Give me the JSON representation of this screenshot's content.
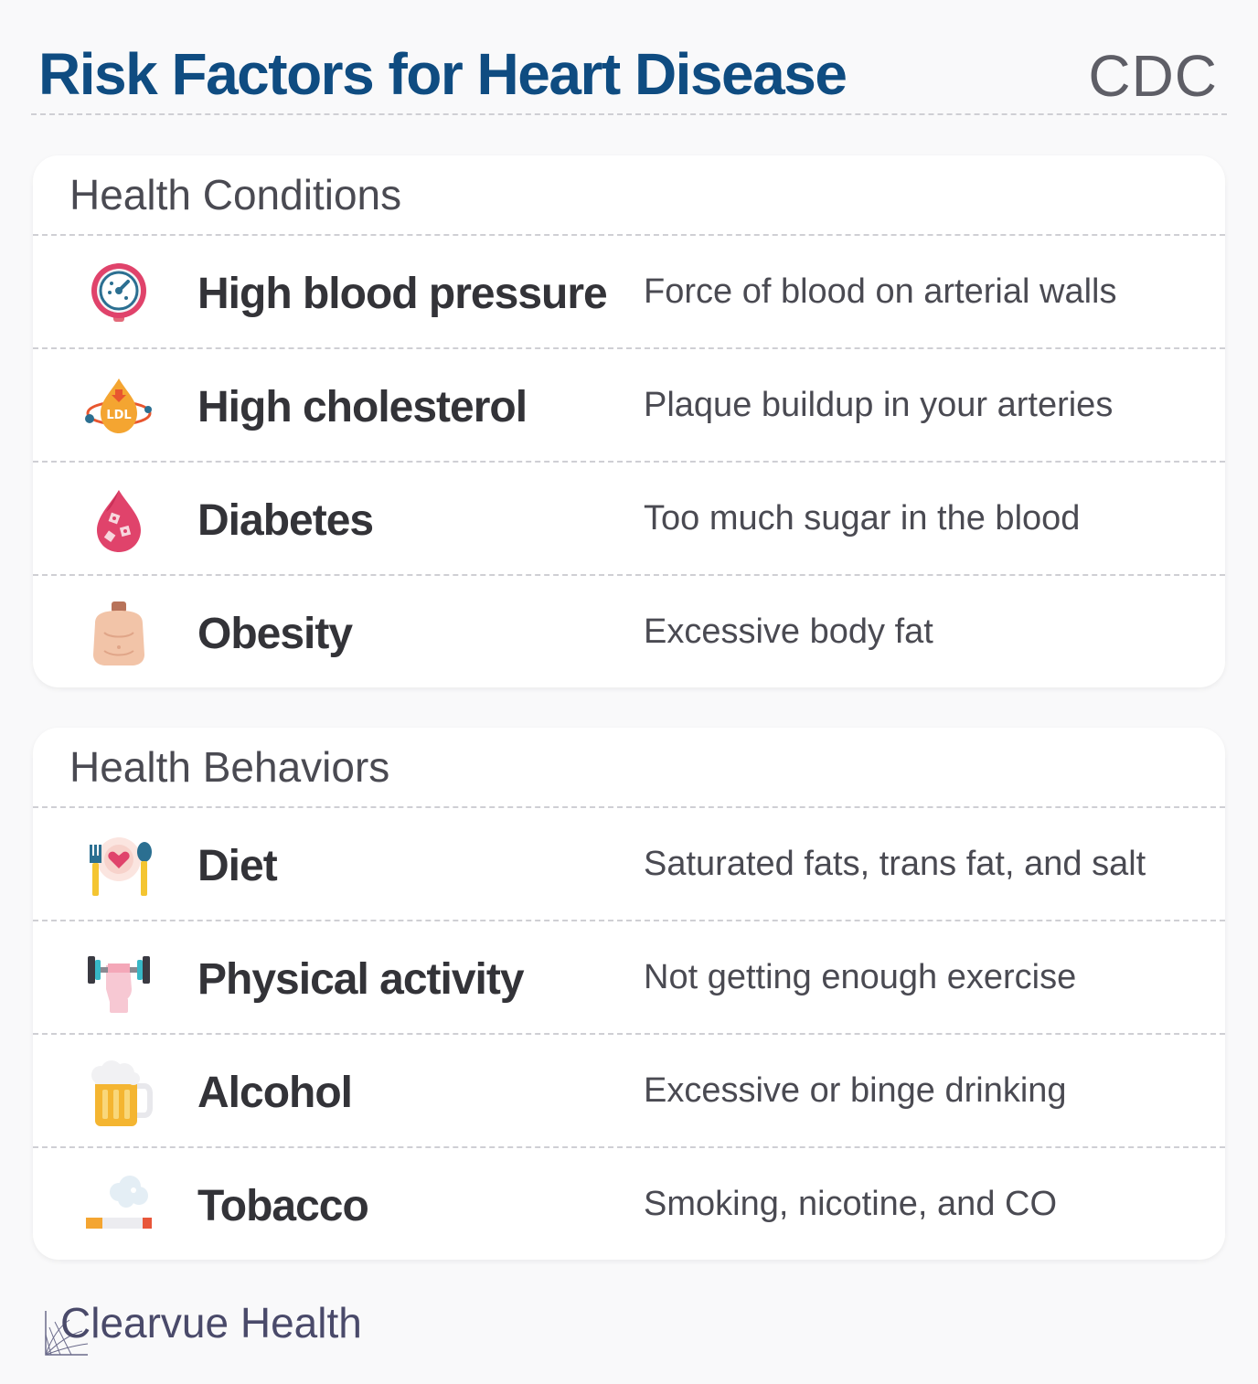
{
  "header": {
    "title": "Risk Factors for Heart Disease",
    "source": "CDC"
  },
  "conditions": {
    "title": "Health Conditions",
    "items": [
      {
        "label": "High blood pressure",
        "description": "Force of blood on arterial walls",
        "icon": "blood-pressure-gauge-icon"
      },
      {
        "label": "High cholesterol",
        "description": "Plaque buildup in your arteries",
        "icon": "ldl-cholesterol-drop-icon"
      },
      {
        "label": "Diabetes",
        "description": "Too much sugar in the blood",
        "icon": "blood-drop-sugar-icon"
      },
      {
        "label": "Obesity",
        "description": "Excessive body fat",
        "icon": "obese-body-icon"
      }
    ]
  },
  "behaviors": {
    "title": "Health Behaviors",
    "items": [
      {
        "label": "Diet",
        "description": "Saturated fats, trans fat, and salt",
        "icon": "plate-fork-spoon-icon"
      },
      {
        "label": "Physical activity",
        "description": "Not getting enough exercise",
        "icon": "dumbbell-hand-icon"
      },
      {
        "label": "Alcohol",
        "description": "Excessive or binge drinking",
        "icon": "beer-mug-icon"
      },
      {
        "label": "Tobacco",
        "description": "Smoking, nicotine, and CO",
        "icon": "cigarette-smoke-icon"
      }
    ]
  },
  "footer": {
    "brand": "Clearvue Health"
  },
  "colors": {
    "title": "#0f4c81",
    "text": "#333338",
    "muted": "#4a4a52",
    "card": "#ffffff",
    "background": "#f9f9fa"
  }
}
